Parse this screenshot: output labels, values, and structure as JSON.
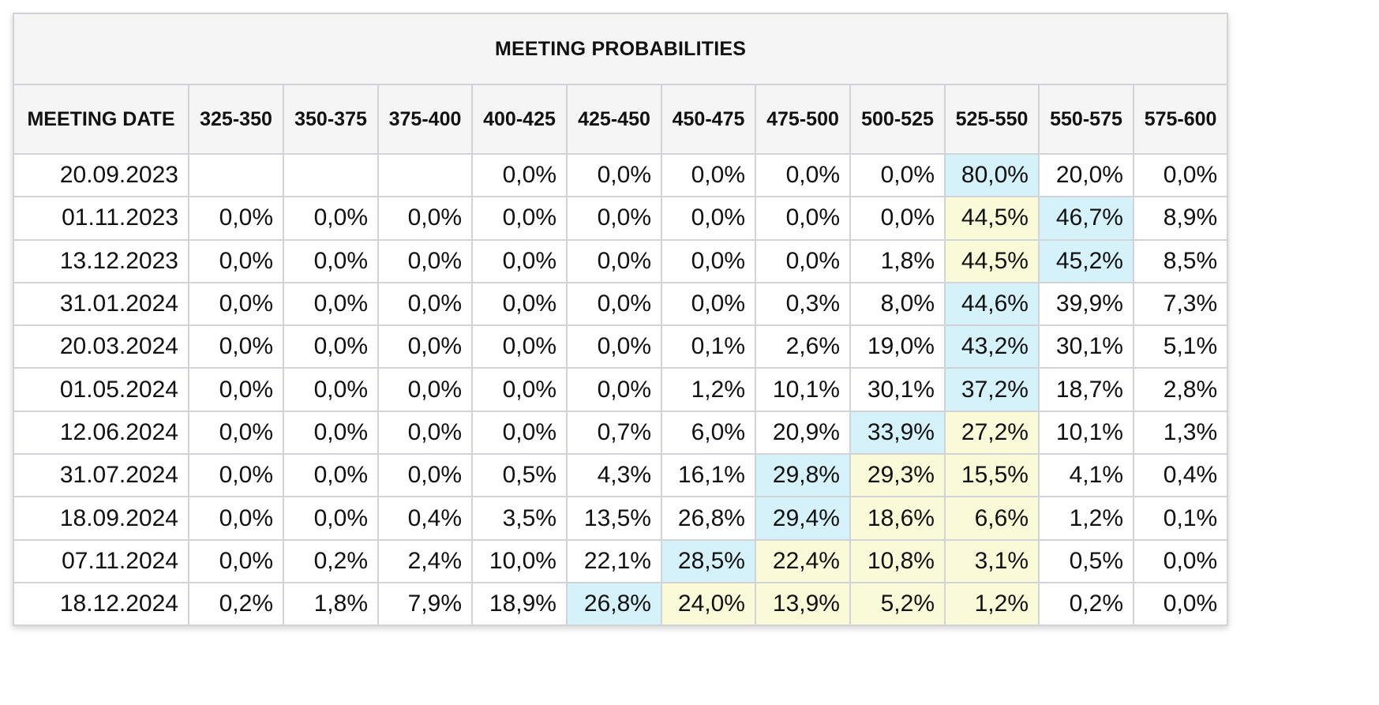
{
  "title": "MEETING PROBABILITIES",
  "colors": {
    "highlight_blue": "#d5f2fb",
    "highlight_yellow": "#fafad8",
    "header_bg": "#f5f5f5",
    "border": "#d2d3d6"
  },
  "headers": [
    "MEETING DATE",
    "325-350",
    "350-375",
    "375-400",
    "400-425",
    "425-450",
    "450-475",
    "475-500",
    "500-525",
    "525-550",
    "550-575",
    "575-600"
  ],
  "rows": [
    {
      "date": "20.09.2023",
      "values": [
        "",
        "",
        "",
        "0,0%",
        "0,0%",
        "0,0%",
        "0,0%",
        "0,0%",
        "80,0%",
        "20,0%",
        "0,0%"
      ],
      "highlights": [
        "",
        "",
        "",
        "",
        "",
        "",
        "",
        "",
        "blue",
        "",
        ""
      ]
    },
    {
      "date": "01.11.2023",
      "values": [
        "0,0%",
        "0,0%",
        "0,0%",
        "0,0%",
        "0,0%",
        "0,0%",
        "0,0%",
        "0,0%",
        "44,5%",
        "46,7%",
        "8,9%"
      ],
      "highlights": [
        "",
        "",
        "",
        "",
        "",
        "",
        "",
        "",
        "yellow",
        "blue",
        ""
      ]
    },
    {
      "date": "13.12.2023",
      "values": [
        "0,0%",
        "0,0%",
        "0,0%",
        "0,0%",
        "0,0%",
        "0,0%",
        "0,0%",
        "1,8%",
        "44,5%",
        "45,2%",
        "8,5%"
      ],
      "highlights": [
        "",
        "",
        "",
        "",
        "",
        "",
        "",
        "",
        "yellow",
        "blue",
        ""
      ]
    },
    {
      "date": "31.01.2024",
      "values": [
        "0,0%",
        "0,0%",
        "0,0%",
        "0,0%",
        "0,0%",
        "0,0%",
        "0,3%",
        "8,0%",
        "44,6%",
        "39,9%",
        "7,3%"
      ],
      "highlights": [
        "",
        "",
        "",
        "",
        "",
        "",
        "",
        "",
        "blue",
        "",
        ""
      ]
    },
    {
      "date": "20.03.2024",
      "values": [
        "0,0%",
        "0,0%",
        "0,0%",
        "0,0%",
        "0,0%",
        "0,1%",
        "2,6%",
        "19,0%",
        "43,2%",
        "30,1%",
        "5,1%"
      ],
      "highlights": [
        "",
        "",
        "",
        "",
        "",
        "",
        "",
        "",
        "blue",
        "",
        ""
      ]
    },
    {
      "date": "01.05.2024",
      "values": [
        "0,0%",
        "0,0%",
        "0,0%",
        "0,0%",
        "0,0%",
        "1,2%",
        "10,1%",
        "30,1%",
        "37,2%",
        "18,7%",
        "2,8%"
      ],
      "highlights": [
        "",
        "",
        "",
        "",
        "",
        "",
        "",
        "",
        "blue",
        "",
        ""
      ]
    },
    {
      "date": "12.06.2024",
      "values": [
        "0,0%",
        "0,0%",
        "0,0%",
        "0,0%",
        "0,7%",
        "6,0%",
        "20,9%",
        "33,9%",
        "27,2%",
        "10,1%",
        "1,3%"
      ],
      "highlights": [
        "",
        "",
        "",
        "",
        "",
        "",
        "",
        "blue",
        "yellow",
        "",
        ""
      ]
    },
    {
      "date": "31.07.2024",
      "values": [
        "0,0%",
        "0,0%",
        "0,0%",
        "0,5%",
        "4,3%",
        "16,1%",
        "29,8%",
        "29,3%",
        "15,5%",
        "4,1%",
        "0,4%"
      ],
      "highlights": [
        "",
        "",
        "",
        "",
        "",
        "",
        "blue",
        "yellow",
        "yellow",
        "",
        ""
      ]
    },
    {
      "date": "18.09.2024",
      "values": [
        "0,0%",
        "0,0%",
        "0,4%",
        "3,5%",
        "13,5%",
        "26,8%",
        "29,4%",
        "18,6%",
        "6,6%",
        "1,2%",
        "0,1%"
      ],
      "highlights": [
        "",
        "",
        "",
        "",
        "",
        "",
        "blue",
        "yellow",
        "yellow",
        "",
        ""
      ]
    },
    {
      "date": "07.11.2024",
      "values": [
        "0,0%",
        "0,2%",
        "2,4%",
        "10,0%",
        "22,1%",
        "28,5%",
        "22,4%",
        "10,8%",
        "3,1%",
        "0,5%",
        "0,0%"
      ],
      "highlights": [
        "",
        "",
        "",
        "",
        "",
        "blue",
        "yellow",
        "yellow",
        "yellow",
        "",
        ""
      ]
    },
    {
      "date": "18.12.2024",
      "values": [
        "0,2%",
        "1,8%",
        "7,9%",
        "18,9%",
        "26,8%",
        "24,0%",
        "13,9%",
        "5,2%",
        "1,2%",
        "0,2%",
        "0,0%"
      ],
      "highlights": [
        "",
        "",
        "",
        "",
        "blue",
        "yellow",
        "yellow",
        "yellow",
        "yellow",
        "",
        ""
      ]
    }
  ]
}
